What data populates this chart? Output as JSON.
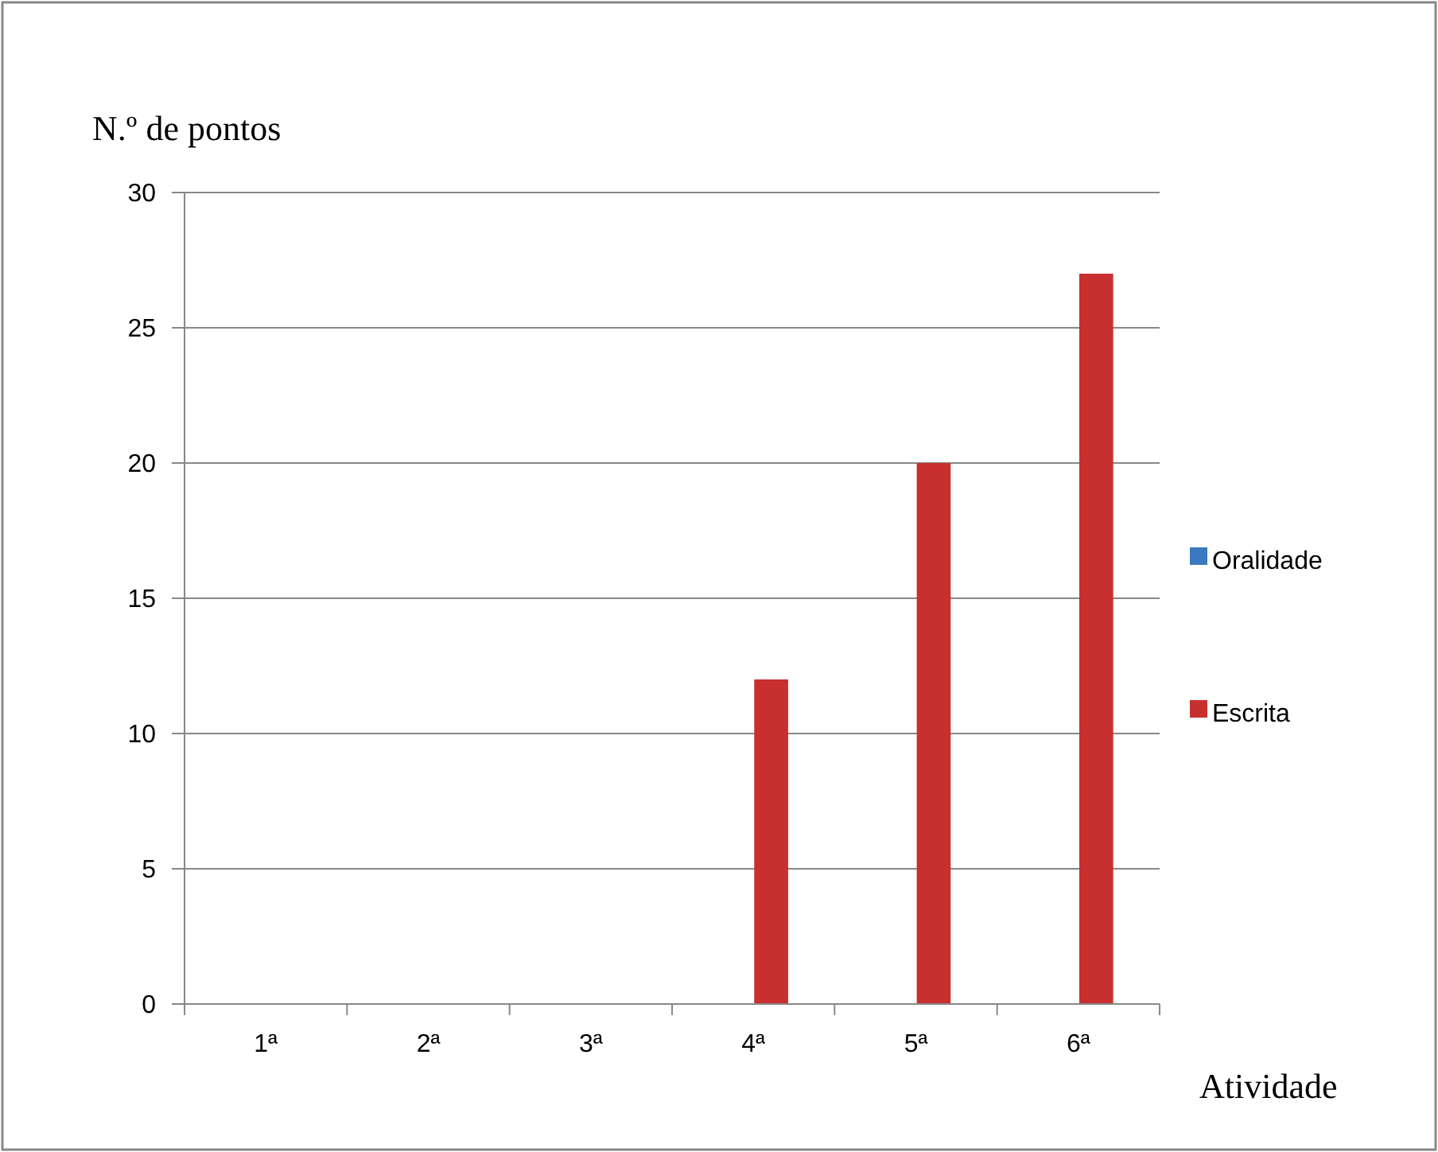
{
  "chart_data": {
    "type": "bar",
    "ylabel": "N.º de pontos",
    "xlabel": "Atividade",
    "categories": [
      "1ª",
      "2ª",
      "3ª",
      "4ª",
      "5ª",
      "6ª"
    ],
    "series": [
      {
        "name": "Oralidade",
        "color": "#3a78c0",
        "values": [
          0,
          0,
          0,
          0,
          0,
          0
        ]
      },
      {
        "name": "Escrita",
        "color": "#c8302f",
        "values": [
          0,
          0,
          0,
          12,
          20,
          27
        ]
      }
    ],
    "ylim": [
      0,
      30
    ],
    "yticks": [
      0,
      5,
      10,
      15,
      20,
      25,
      30
    ],
    "grid": "y",
    "legend": "right"
  }
}
